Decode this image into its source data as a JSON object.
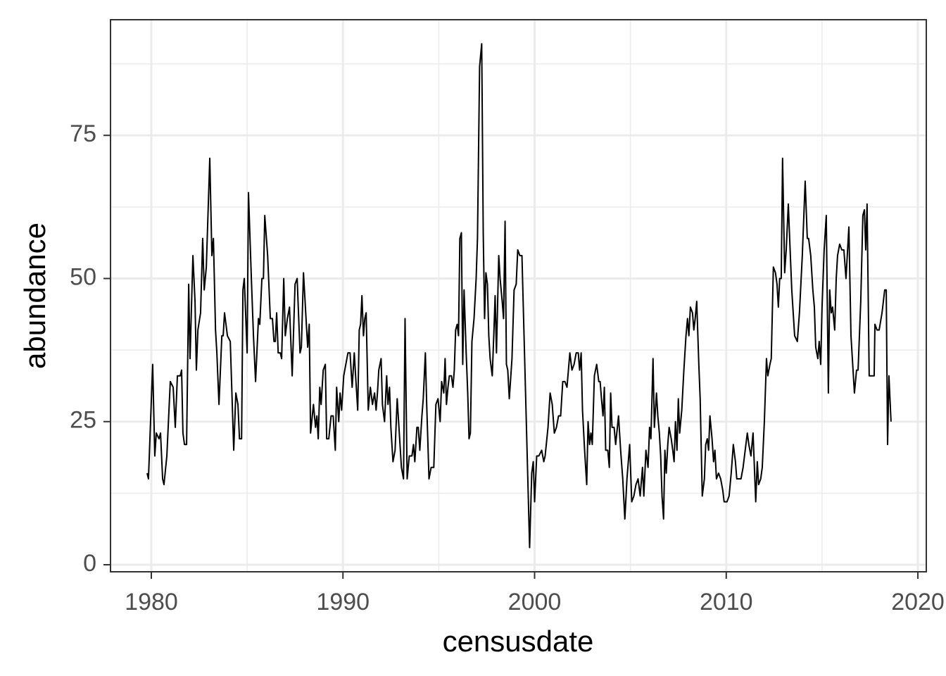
{
  "chart_data": {
    "type": "line",
    "x_label": "censusdate",
    "y_label": "abundance",
    "color": "#000000",
    "grid": true,
    "xlim": [
      1977.87,
      2020.44
    ],
    "ylim": [
      -1.23,
      95.2
    ],
    "xticks": [
      1980,
      1990,
      2000,
      2010,
      2020
    ],
    "yticks": [
      0,
      25,
      50,
      75
    ],
    "xminor": [
      1985,
      1995,
      2005,
      2015
    ],
    "yminor": [
      12.5,
      37.5,
      62.5,
      87.5
    ],
    "x": [
      1979.78,
      1979.85,
      1980.07,
      1980.18,
      1980.26,
      1980.4,
      1980.48,
      1980.59,
      1980.66,
      1980.81,
      1980.99,
      1981.14,
      1981.25,
      1981.36,
      1981.51,
      1981.58,
      1981.65,
      1981.73,
      1981.84,
      1981.95,
      1982.02,
      1982.17,
      1982.28,
      1982.35,
      1982.43,
      1982.57,
      1982.68,
      1982.76,
      1982.87,
      1983.05,
      1983.16,
      1983.24,
      1983.35,
      1983.42,
      1983.53,
      1983.68,
      1983.75,
      1983.82,
      1983.97,
      1984.12,
      1984.3,
      1984.41,
      1984.52,
      1984.6,
      1984.71,
      1984.78,
      1984.85,
      1985.0,
      1985.07,
      1985.22,
      1985.33,
      1985.44,
      1985.59,
      1985.66,
      1985.77,
      1985.85,
      1985.92,
      1986.07,
      1986.21,
      1986.32,
      1986.4,
      1986.47,
      1986.54,
      1986.62,
      1986.73,
      1986.8,
      1986.91,
      1986.99,
      1987.1,
      1987.21,
      1987.35,
      1987.5,
      1987.61,
      1987.76,
      1987.83,
      1987.94,
      1988.09,
      1988.16,
      1988.24,
      1988.31,
      1988.46,
      1988.57,
      1988.64,
      1988.71,
      1988.79,
      1988.86,
      1988.97,
      1989.08,
      1989.15,
      1989.26,
      1989.38,
      1989.49,
      1989.6,
      1989.67,
      1989.78,
      1989.85,
      1989.93,
      1990.04,
      1990.15,
      1990.26,
      1990.37,
      1990.48,
      1990.59,
      1990.66,
      1990.77,
      1990.85,
      1990.92,
      1990.99,
      1991.07,
      1991.14,
      1991.21,
      1991.32,
      1991.43,
      1991.54,
      1991.65,
      1991.73,
      1991.8,
      1991.87,
      1991.99,
      1992.06,
      1992.17,
      1992.28,
      1992.35,
      1992.43,
      1992.5,
      1992.61,
      1992.72,
      1992.83,
      1992.94,
      1993.05,
      1993.16,
      1993.24,
      1993.35,
      1993.46,
      1993.6,
      1993.68,
      1993.75,
      1993.86,
      1993.93,
      1994.01,
      1994.12,
      1994.19,
      1994.3,
      1994.37,
      1994.49,
      1994.6,
      1994.74,
      1994.85,
      1994.96,
      1995.07,
      1995.15,
      1995.26,
      1995.33,
      1995.4,
      1995.48,
      1995.55,
      1995.66,
      1995.74,
      1995.81,
      1995.88,
      1995.96,
      1996.03,
      1996.1,
      1996.18,
      1996.25,
      1996.32,
      1996.43,
      1996.51,
      1996.58,
      1996.65,
      1996.73,
      1996.84,
      1996.95,
      1997.02,
      1997.13,
      1997.24,
      1997.32,
      1997.39,
      1997.46,
      1997.54,
      1997.61,
      1997.68,
      1997.79,
      1997.87,
      1997.94,
      1998.01,
      1998.13,
      1998.2,
      1998.31,
      1998.38,
      1998.46,
      1998.53,
      1998.6,
      1998.68,
      1998.82,
      1998.93,
      1999.04,
      1999.12,
      1999.23,
      1999.34,
      1999.74,
      1999.85,
      1999.93,
      2000.0,
      2000.11,
      2000.22,
      2000.37,
      2000.48,
      2000.55,
      2000.7,
      2000.81,
      2000.92,
      2001.03,
      2001.14,
      2001.25,
      2001.36,
      2001.47,
      2001.58,
      2001.69,
      2001.84,
      2001.95,
      2002.06,
      2002.17,
      2002.28,
      2002.35,
      2002.43,
      2002.5,
      2002.61,
      2002.72,
      2002.79,
      2002.87,
      2002.94,
      2003.01,
      2003.12,
      2003.24,
      2003.35,
      2003.42,
      2003.49,
      2003.57,
      2003.64,
      2003.71,
      2003.82,
      2003.9,
      2003.97,
      2004.04,
      2004.15,
      2004.23,
      2004.38,
      2004.49,
      2004.6,
      2004.71,
      2004.82,
      2004.96,
      2005.07,
      2005.18,
      2005.29,
      2005.4,
      2005.51,
      2005.63,
      2005.7,
      2005.81,
      2005.92,
      2006.0,
      2006.07,
      2006.18,
      2006.25,
      2006.36,
      2006.43,
      2006.51,
      2006.58,
      2006.65,
      2006.73,
      2006.8,
      2006.87,
      2006.95,
      2007.02,
      2007.13,
      2007.21,
      2007.28,
      2007.35,
      2007.43,
      2007.5,
      2007.57,
      2007.68,
      2007.79,
      2007.9,
      2007.98,
      2008.05,
      2008.13,
      2008.24,
      2008.31,
      2008.38,
      2008.46,
      2008.57,
      2008.64,
      2008.75,
      2008.86,
      2008.93,
      2009.01,
      2009.08,
      2009.15,
      2009.26,
      2009.34,
      2009.41,
      2009.49,
      2009.6,
      2009.71,
      2009.82,
      2009.89,
      2010.04,
      2010.15,
      2010.26,
      2010.37,
      2010.48,
      2010.55,
      2010.66,
      2010.77,
      2010.88,
      2010.99,
      2011.1,
      2011.18,
      2011.29,
      2011.4,
      2011.47,
      2011.54,
      2011.62,
      2011.69,
      2011.8,
      2011.88,
      2011.99,
      2012.1,
      2012.17,
      2012.28,
      2012.35,
      2012.46,
      2012.57,
      2012.65,
      2012.72,
      2012.79,
      2012.87,
      2012.94,
      2013.05,
      2013.13,
      2013.24,
      2013.31,
      2013.42,
      2013.57,
      2013.71,
      2013.82,
      2013.97,
      2014.12,
      2014.23,
      2014.3,
      2014.41,
      2014.52,
      2014.6,
      2014.67,
      2014.78,
      2014.85,
      2014.93,
      2015.0,
      2015.11,
      2015.22,
      2015.33,
      2015.4,
      2015.48,
      2015.55,
      2015.66,
      2015.74,
      2015.81,
      2015.92,
      2016.03,
      2016.14,
      2016.25,
      2016.4,
      2016.51,
      2016.69,
      2016.8,
      2016.88,
      2017.02,
      2017.13,
      2017.21,
      2017.28,
      2017.35,
      2017.46,
      2017.61,
      2017.72,
      2017.76,
      2017.87,
      2017.98,
      2018.13,
      2018.27,
      2018.35,
      2018.42,
      2018.49,
      2018.6
    ],
    "values": [
      16,
      15,
      35,
      19,
      23,
      22,
      23,
      15,
      14,
      19,
      32,
      31,
      24,
      33,
      33,
      34,
      23,
      21,
      21,
      49,
      36,
      54,
      46,
      34,
      41,
      44,
      57,
      48,
      52,
      71,
      54,
      57,
      41,
      37,
      28,
      40,
      40,
      44,
      40,
      39,
      20,
      30,
      28,
      22,
      22,
      48,
      50,
      37,
      65,
      50,
      40,
      32,
      43,
      42,
      50,
      50,
      61,
      54,
      43,
      43,
      39,
      39,
      44,
      37,
      37,
      36,
      50,
      40,
      43,
      45,
      33,
      49,
      50,
      37,
      38,
      51,
      42,
      38,
      42,
      23,
      28,
      24,
      26,
      22,
      31,
      28,
      34,
      35,
      22,
      22,
      26,
      26,
      20,
      31,
      25,
      30,
      27,
      33,
      35,
      37,
      37,
      31,
      37,
      33,
      27,
      41,
      42,
      47,
      40,
      43,
      44,
      27,
      31,
      28,
      30,
      27,
      30,
      34,
      36,
      28,
      25,
      33,
      28,
      31,
      24,
      18,
      20,
      29,
      23,
      17,
      15,
      43,
      15,
      19,
      19,
      21,
      18,
      24,
      24,
      20,
      26,
      29,
      37,
      28,
      15,
      17,
      17,
      28,
      29,
      25,
      32,
      30,
      36,
      28,
      31,
      33,
      33,
      31,
      34,
      41,
      42,
      40,
      57,
      58,
      35,
      48,
      37,
      30,
      22,
      23,
      39,
      43,
      50,
      57,
      87,
      91,
      58,
      43,
      51,
      49,
      40,
      36,
      33,
      40,
      47,
      37,
      54,
      50,
      46,
      43,
      60,
      35,
      34,
      29,
      36,
      48,
      49,
      55,
      54,
      54,
      3,
      16,
      18,
      11,
      19,
      19,
      20,
      18,
      19,
      24,
      30,
      28,
      23,
      24,
      26,
      26,
      32,
      32,
      31,
      37,
      34,
      35,
      37,
      37,
      34,
      37,
      27,
      20,
      14,
      25,
      21,
      23,
      21,
      33,
      35,
      32,
      32,
      29,
      26,
      31,
      20,
      20,
      17,
      30,
      24,
      24,
      21,
      26,
      20,
      15,
      8,
      15,
      21,
      11,
      12,
      14,
      15,
      12,
      17,
      12,
      20,
      17,
      24,
      22,
      36,
      24,
      30,
      26,
      23,
      19,
      12,
      8,
      20,
      16,
      21,
      24,
      22,
      20,
      18,
      25,
      20,
      29,
      23,
      27,
      34,
      40,
      43,
      40,
      45,
      44,
      41,
      43,
      46,
      35,
      29,
      12,
      15,
      21,
      22,
      20,
      26,
      22,
      18,
      20,
      15,
      16,
      15,
      13,
      11,
      11,
      12,
      16,
      21,
      18,
      15,
      15,
      15,
      17,
      20,
      23,
      21,
      19,
      23,
      17,
      11,
      18,
      14,
      15,
      17,
      25,
      36,
      33,
      35,
      36,
      52,
      51,
      49,
      45,
      50,
      50,
      71,
      51,
      55,
      63,
      57,
      48,
      40,
      39,
      44,
      54,
      67,
      57,
      57,
      54,
      48,
      45,
      38,
      36,
      39,
      35,
      45,
      55,
      61,
      30,
      48,
      44,
      45,
      41,
      50,
      54,
      56,
      55,
      55,
      50,
      59,
      40,
      30,
      34,
      34,
      46,
      61,
      62,
      55,
      63,
      33,
      33,
      33,
      42,
      41,
      41,
      44,
      48,
      48,
      21,
      33,
      25
    ]
  }
}
